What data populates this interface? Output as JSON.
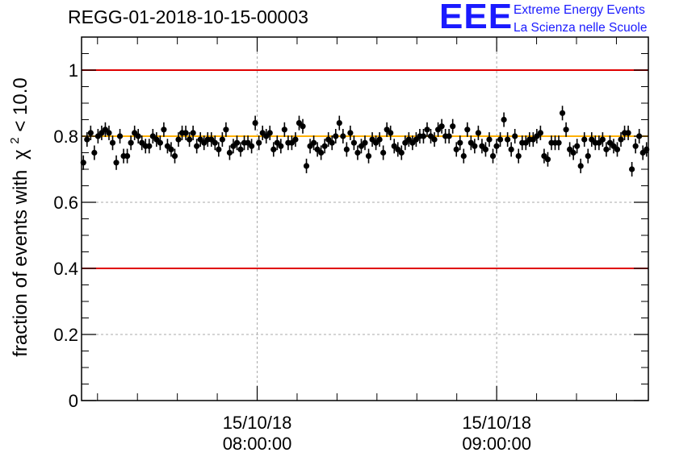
{
  "header": {
    "title": "REGG-01-2018-10-15-00003"
  },
  "logo": {
    "mark": "EEE",
    "line1": "Extreme Energy Events",
    "line2": "La Scienza nelle Scuole",
    "color": "#1a1aff"
  },
  "chart_data": {
    "type": "scatter",
    "title": "REGG-01-2018-10-15-00003",
    "xlabel": "",
    "ylabel": "fraction of events with",
    "ylabel_symbol": "χ",
    "ylabel_sup": "2",
    "ylabel_tail": " < 10.0",
    "xlim": [
      "07:16:00",
      "09:38:00"
    ],
    "ylim": [
      0,
      1.1
    ],
    "yticks": [
      0,
      0.2,
      0.4,
      0.6,
      0.8,
      1
    ],
    "ytick_labels": [
      "0",
      "0.2",
      "0.4",
      "0.6",
      "0.8",
      "1"
    ],
    "xticks": [
      {
        "time": "08:00:00",
        "date": "15/10/18",
        "label_time": "08:00:00"
      },
      {
        "time": "09:00:00",
        "date": "15/10/18",
        "label_time": "09:00:00"
      }
    ],
    "grid": true,
    "reference_lines": [
      {
        "y": 1.0,
        "color": "#e00000"
      },
      {
        "y": 0.4,
        "color": "#e00000"
      },
      {
        "y": 0.8,
        "color": "#ffb000"
      }
    ],
    "marker_color": "#000000",
    "error": 0.022,
    "series": [
      {
        "values": [
          0.72,
          0.79,
          0.81,
          0.75,
          0.8,
          0.81,
          0.82,
          0.81,
          0.78,
          0.72,
          0.8,
          0.74,
          0.74,
          0.78,
          0.81,
          0.8,
          0.78,
          0.77,
          0.77,
          0.8,
          0.79,
          0.78,
          0.82,
          0.77,
          0.76,
          0.74,
          0.79,
          0.81,
          0.81,
          0.79,
          0.81,
          0.77,
          0.79,
          0.78,
          0.79,
          0.79,
          0.78,
          0.76,
          0.79,
          0.82,
          0.75,
          0.77,
          0.78,
          0.76,
          0.78,
          0.78,
          0.77,
          0.84,
          0.78,
          0.81,
          0.8,
          0.81,
          0.76,
          0.78,
          0.77,
          0.82,
          0.78,
          0.78,
          0.79,
          0.84,
          0.83,
          0.71,
          0.77,
          0.78,
          0.76,
          0.75,
          0.77,
          0.79,
          0.78,
          0.8,
          0.84,
          0.8,
          0.76,
          0.81,
          0.78,
          0.75,
          0.77,
          0.78,
          0.74,
          0.79,
          0.78,
          0.79,
          0.75,
          0.82,
          0.81,
          0.77,
          0.76,
          0.75,
          0.78,
          0.79,
          0.78,
          0.79,
          0.8,
          0.8,
          0.82,
          0.8,
          0.79,
          0.82,
          0.83,
          0.8,
          0.8,
          0.83,
          0.76,
          0.78,
          0.74,
          0.82,
          0.78,
          0.77,
          0.81,
          0.77,
          0.76,
          0.79,
          0.74,
          0.77,
          0.79,
          0.85,
          0.79,
          0.76,
          0.8,
          0.74,
          0.78,
          0.78,
          0.79,
          0.79,
          0.8,
          0.81,
          0.74,
          0.73,
          0.78,
          0.78,
          0.78,
          0.87,
          0.82,
          0.76,
          0.75,
          0.77,
          0.71,
          0.79,
          0.74,
          0.79,
          0.78,
          0.78,
          0.79,
          0.76,
          0.78,
          0.77,
          0.76,
          0.79,
          0.81,
          0.81,
          0.7,
          0.77,
          0.8,
          0.75,
          0.76
        ]
      }
    ]
  }
}
